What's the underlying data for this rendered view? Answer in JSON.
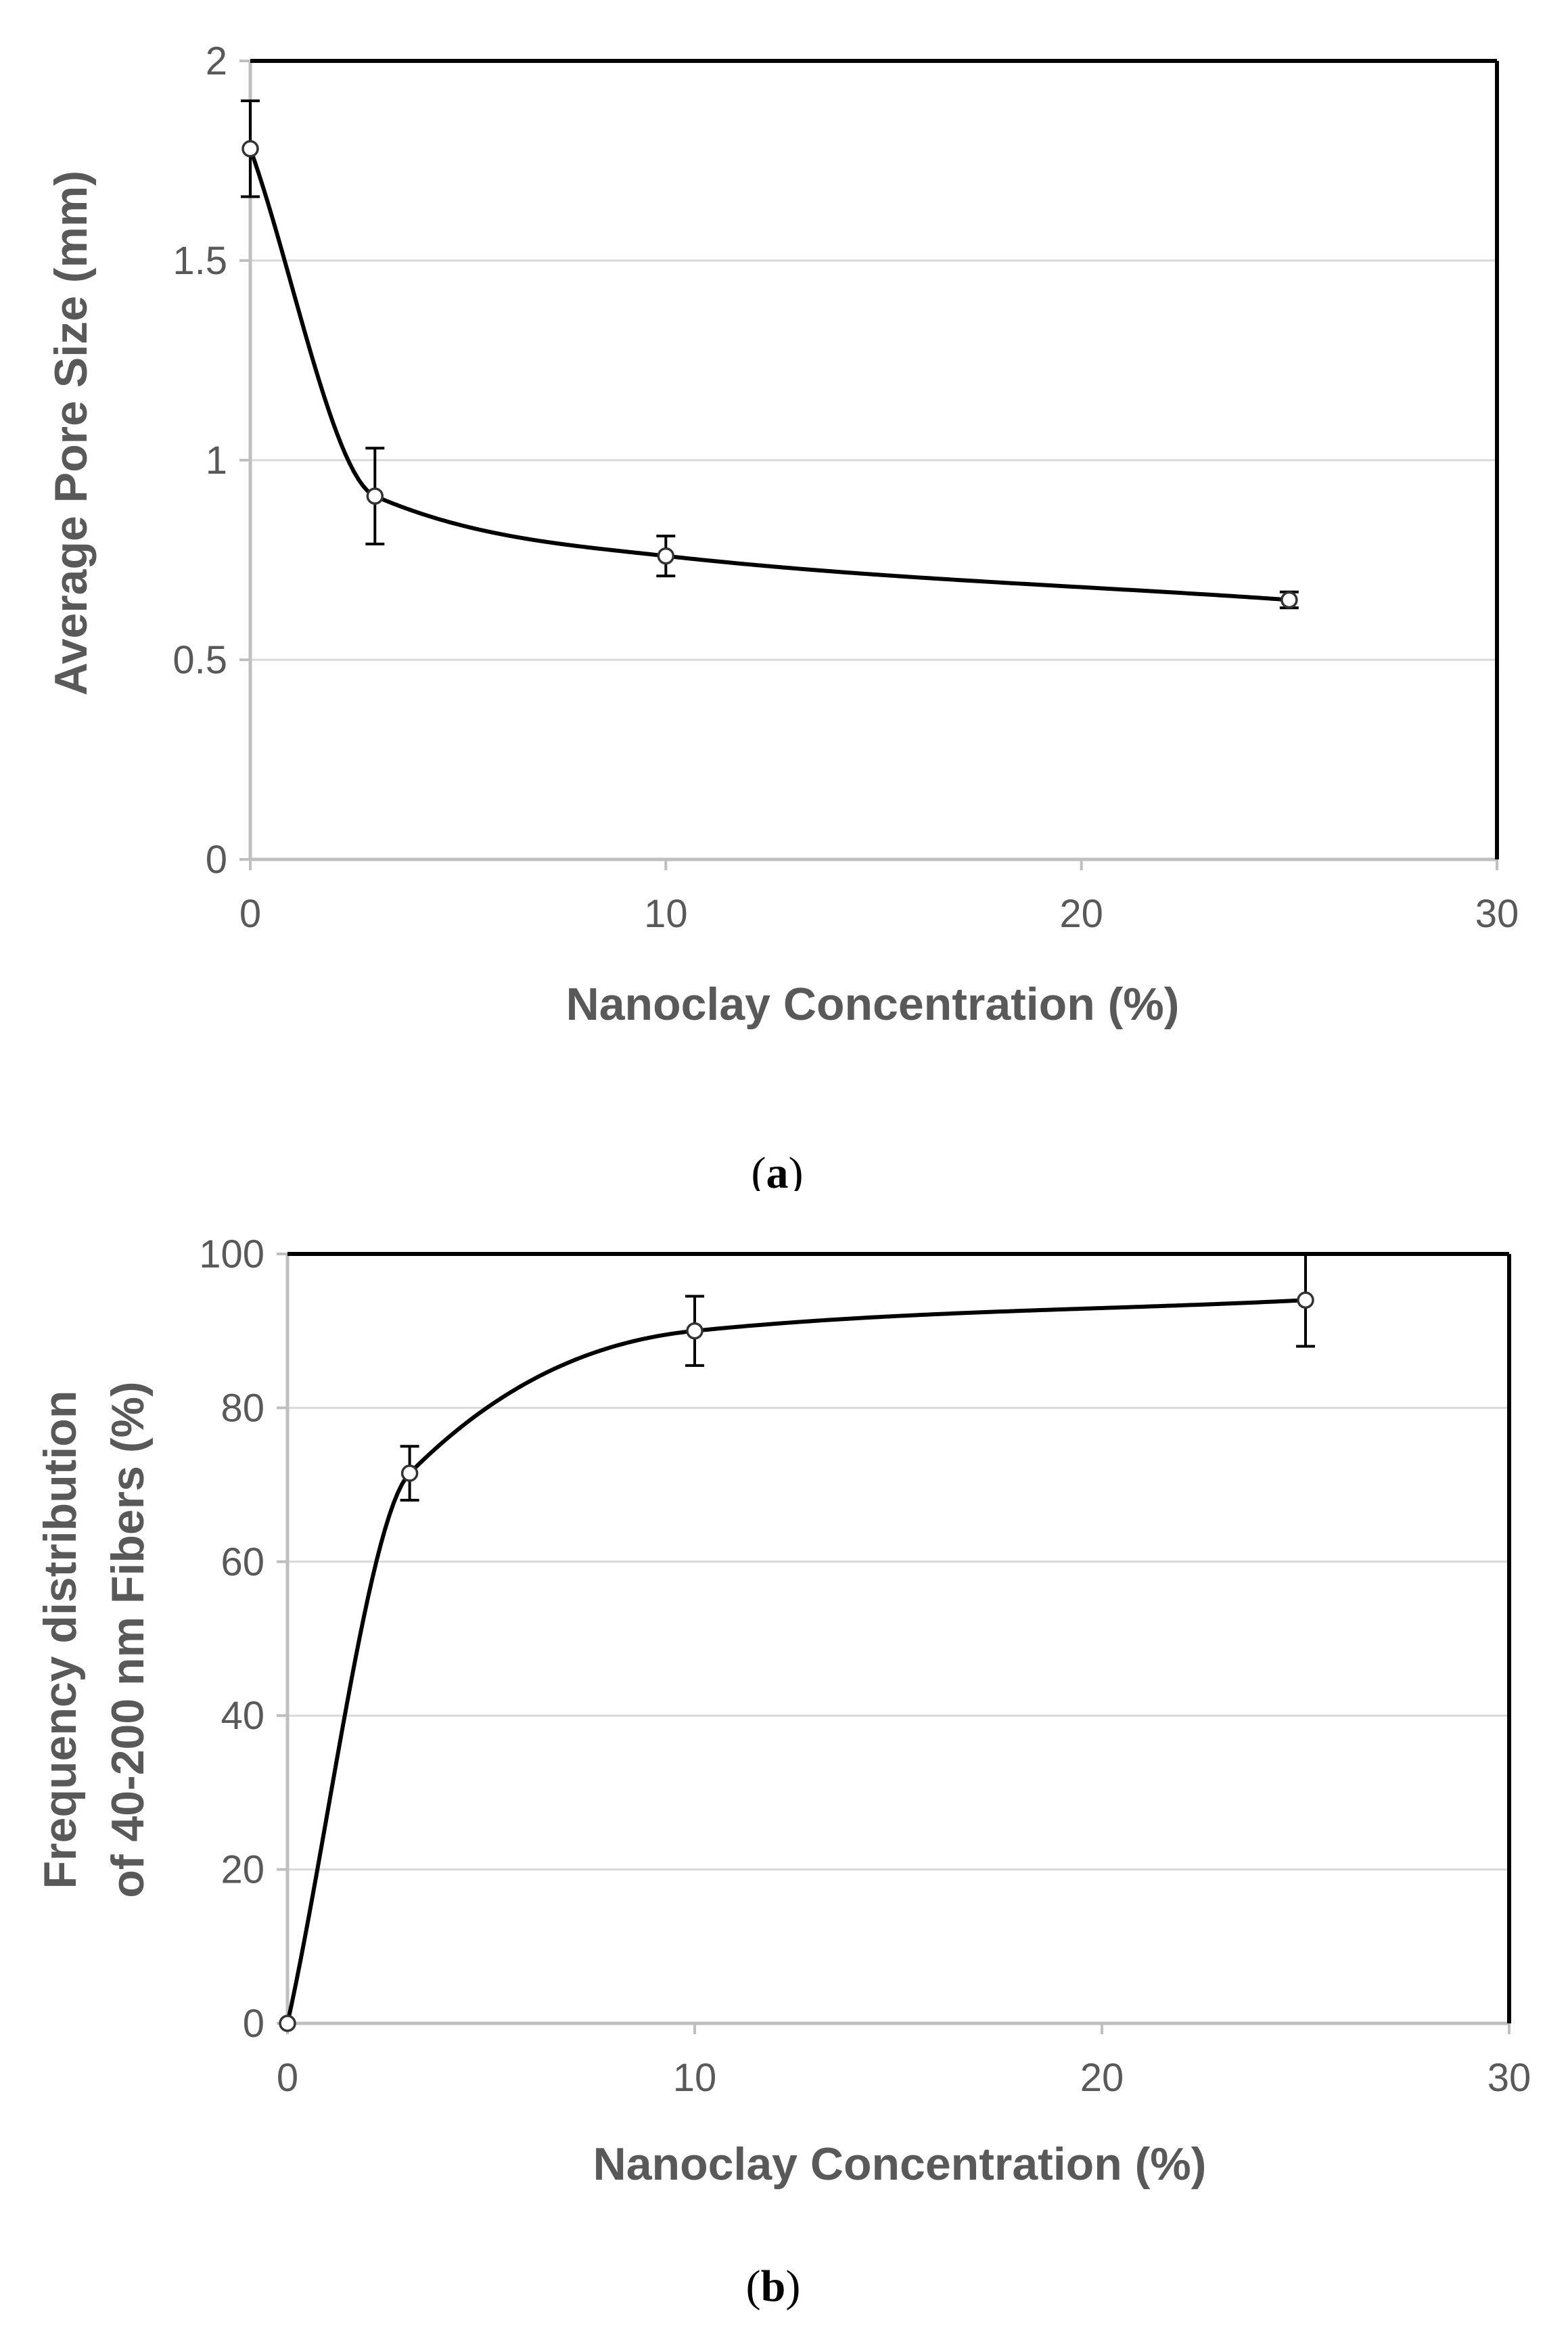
{
  "chart_data": [
    {
      "type": "line",
      "panel_label": "a",
      "caption_open": "(",
      "caption_close": ")",
      "title": "",
      "xlabel": "Nanoclay Concentration (%)",
      "ylabel": "Average Pore Size (mm)",
      "xlim": [
        0,
        30
      ],
      "ylim": [
        0,
        2
      ],
      "xticks": [
        0,
        10,
        20,
        30
      ],
      "xtick_labels": [
        "0",
        "10",
        "20",
        "30"
      ],
      "yticks": [
        0,
        0.5,
        1,
        1.5,
        2
      ],
      "ytick_labels": [
        "0",
        "0.5",
        "1",
        "1.5",
        "2"
      ],
      "grid": true,
      "smooth": true,
      "series": [
        {
          "name": "Average Pore Size",
          "x": [
            0,
            3,
            10,
            25
          ],
          "values": [
            1.78,
            0.91,
            0.76,
            0.65
          ],
          "error": [
            0.12,
            0.12,
            0.05,
            0.02
          ],
          "marker": "open-circle"
        }
      ]
    },
    {
      "type": "line",
      "panel_label": "b",
      "caption_open": "(",
      "caption_close": ")",
      "title": "",
      "xlabel": "Nanoclay  Concentration  (%)",
      "ylabel_lines": [
        "Frequency distribution",
        "of 40-200 nm Fibers (%)"
      ],
      "xlim": [
        0,
        30
      ],
      "ylim": [
        0,
        100
      ],
      "xticks": [
        0,
        10,
        20,
        30
      ],
      "xtick_labels": [
        "0",
        "10",
        "20",
        "30"
      ],
      "yticks": [
        0,
        20,
        40,
        60,
        80,
        100
      ],
      "ytick_labels": [
        "0",
        "20",
        "40",
        "60",
        "80",
        "100"
      ],
      "grid": true,
      "smooth": true,
      "series": [
        {
          "name": "Frequency distribution of 40-200 nm Fibers",
          "x": [
            0,
            3,
            10,
            25
          ],
          "values": [
            0,
            71.5,
            90,
            94
          ],
          "error": [
            0,
            3.5,
            4.5,
            6
          ],
          "marker": "open-circle"
        }
      ]
    }
  ]
}
